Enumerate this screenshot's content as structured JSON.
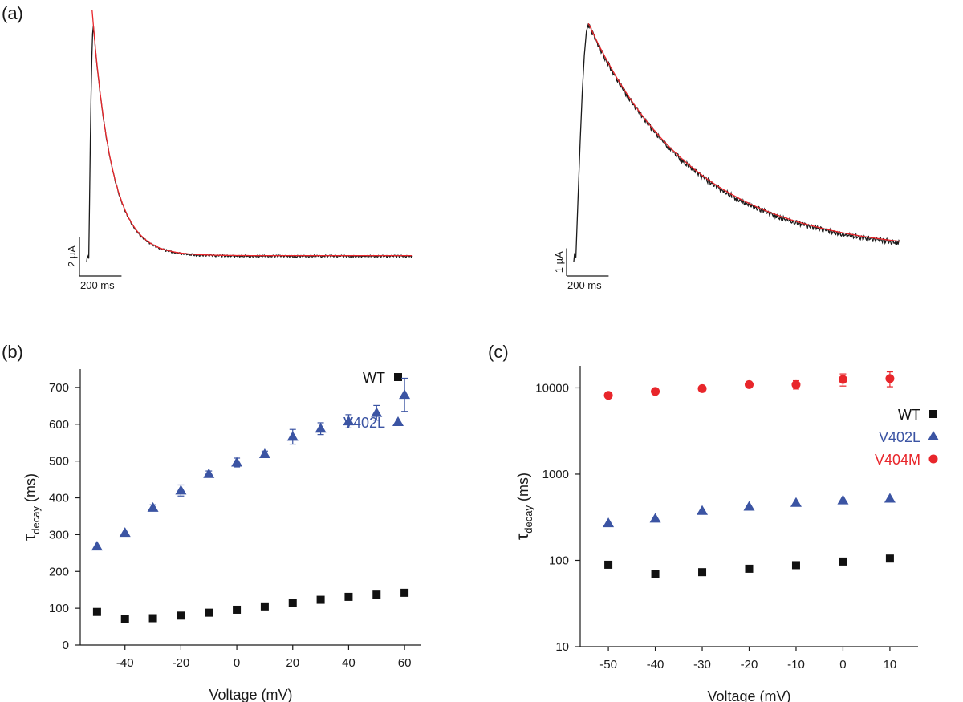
{
  "chart_data": [
    {
      "panel": "(a)",
      "type": "line",
      "traces": [
        {
          "scale_current": "2 µA",
          "scale_time": "200 ms",
          "recorded_color": "#1a1a1a",
          "fit_color": "#e8262b",
          "baseline_uA": -0.3,
          "peak_uA": 11.7,
          "tau_ms": 93,
          "duration_ms": 1550
        },
        {
          "scale_current": "1 µA",
          "scale_time": "200 ms",
          "recorded_color": "#1a1a1a",
          "fit_color": "#e8262b",
          "baseline_uA": -0.3,
          "peak_uA": 8.3,
          "tau_ms": 500,
          "duration_ms": 1550
        }
      ]
    },
    {
      "panel": "(b)",
      "type": "scatter",
      "xlabel": "Voltage (mV)",
      "ylabel": "τ",
      "ylabel_sub": "decay",
      "ylabel_unit": " (ms)",
      "xlim": [
        -56,
        66
      ],
      "ylim": [
        0,
        750
      ],
      "xticks": [
        -40,
        -20,
        0,
        20,
        40,
        60
      ],
      "yticks": [
        0,
        100,
        200,
        300,
        400,
        500,
        600,
        700
      ],
      "legend_position": "right",
      "series": [
        {
          "name": "WT",
          "marker": "square",
          "color": "#111111",
          "x": [
            -50,
            -40,
            -30,
            -20,
            -10,
            0,
            10,
            20,
            30,
            40,
            50,
            60
          ],
          "y": [
            90,
            70,
            73,
            80,
            88,
            96,
            105,
            114,
            123,
            131,
            137,
            142
          ],
          "err": [
            0,
            0,
            0,
            0,
            0,
            0,
            0,
            0,
            0,
            0,
            0,
            0
          ]
        },
        {
          "name": "V402L",
          "marker": "triangle",
          "color": "#3b54a3",
          "x": [
            -50,
            -40,
            -30,
            -20,
            -10,
            0,
            10,
            20,
            30,
            40,
            50,
            60
          ],
          "y": [
            268,
            305,
            373,
            420,
            465,
            496,
            519,
            566,
            588,
            608,
            631,
            680
          ],
          "err": [
            0,
            0,
            8,
            15,
            8,
            12,
            8,
            20,
            16,
            18,
            20,
            45
          ]
        }
      ]
    },
    {
      "panel": "(c)",
      "type": "scatter",
      "xlabel": "Voltage (mV)",
      "ylabel": "τ",
      "ylabel_sub": "decay",
      "ylabel_unit": " (ms)",
      "y_scale": "log",
      "xlim": [
        -56,
        16
      ],
      "ylim": [
        10,
        18000
      ],
      "xticks": [
        -50,
        -40,
        -30,
        -20,
        -10,
        0,
        10
      ],
      "yticks": [
        10,
        100,
        1000,
        10000
      ],
      "legend_position": "right",
      "series": [
        {
          "name": "WT",
          "marker": "square",
          "color": "#111111",
          "x": [
            -50,
            -40,
            -30,
            -20,
            -10,
            0,
            10
          ],
          "y": [
            89,
            70,
            73,
            80,
            88,
            97,
            105
          ],
          "err_up": [
            0,
            0,
            0,
            0,
            0,
            0,
            0
          ],
          "err_down": [
            0,
            0,
            0,
            0,
            0,
            0,
            0
          ]
        },
        {
          "name": "V402L",
          "marker": "triangle",
          "color": "#3b54a3",
          "x": [
            -50,
            -40,
            -30,
            -20,
            -10,
            0,
            10
          ],
          "y": [
            270,
            305,
            375,
            420,
            465,
            497,
            520
          ],
          "err_up": [
            0,
            0,
            0,
            0,
            0,
            0,
            0
          ],
          "err_down": [
            0,
            0,
            0,
            0,
            0,
            0,
            0
          ]
        },
        {
          "name": "V404M",
          "marker": "circle",
          "color": "#e8262b",
          "x": [
            -50,
            -40,
            -30,
            -20,
            -10,
            0,
            10
          ],
          "y": [
            8200,
            9100,
            9800,
            10900,
            10900,
            12500,
            12800
          ],
          "err_up": [
            0,
            0,
            0,
            800,
            1200,
            2000,
            2500
          ],
          "err_down": [
            0,
            0,
            0,
            800,
            1200,
            2000,
            2500
          ]
        }
      ]
    }
  ]
}
